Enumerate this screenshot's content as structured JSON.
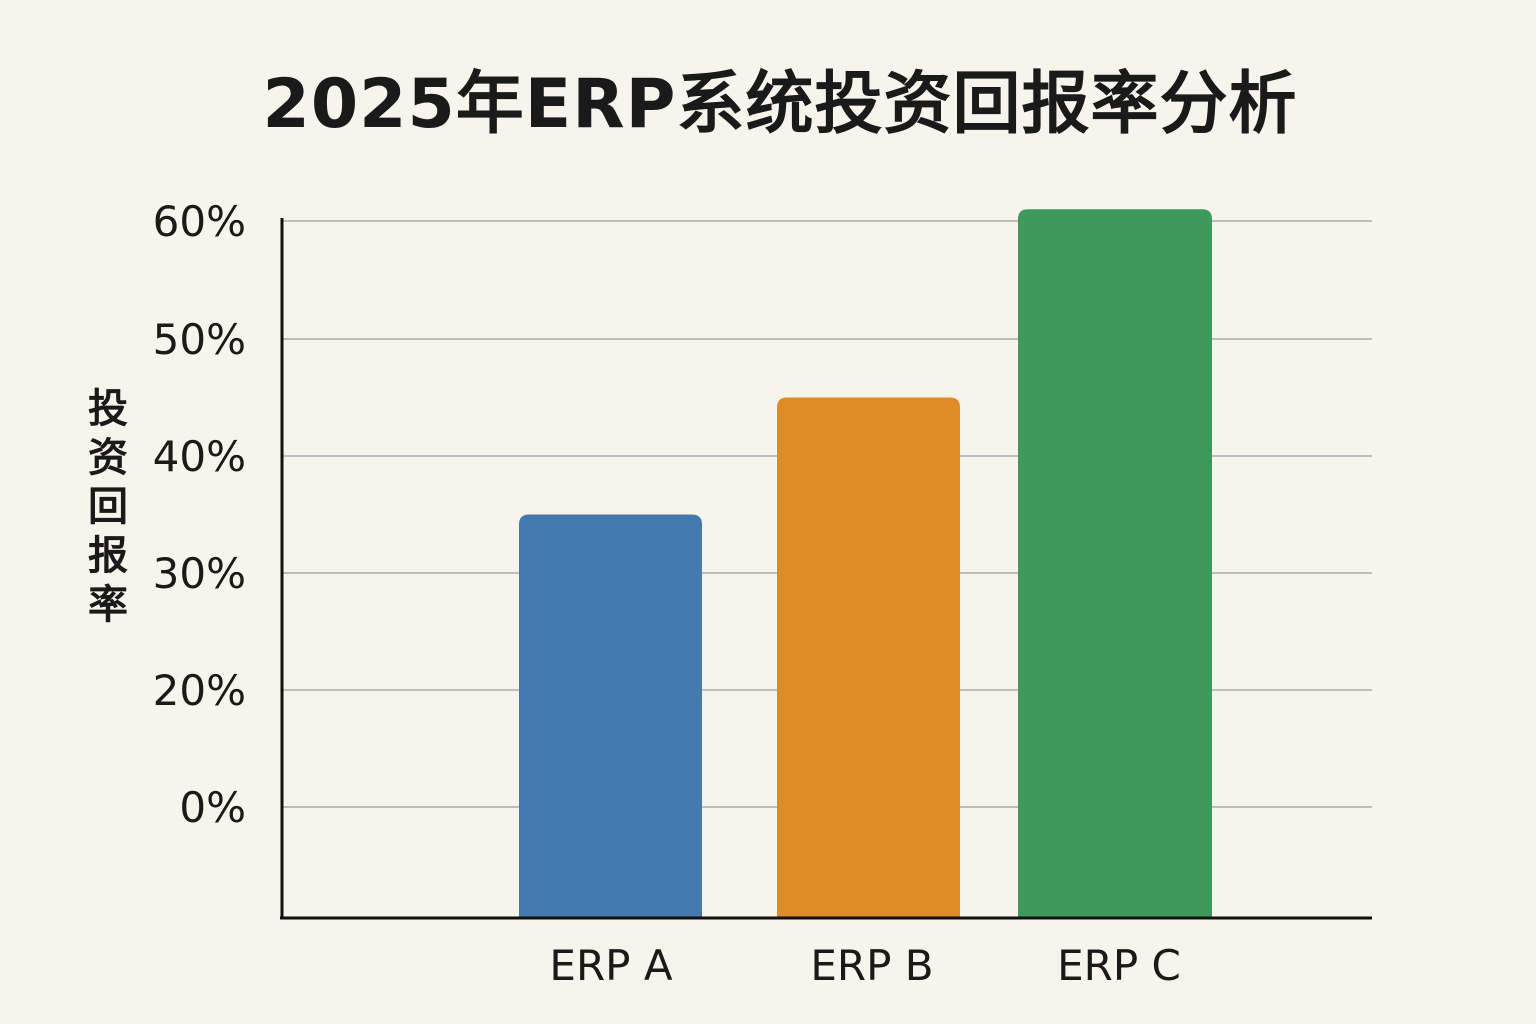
{
  "chart_data": {
    "type": "bar",
    "title": "2025年ERP系统投资回报率分析",
    "xlabel": "",
    "ylabel": "投资回报率",
    "categories": [
      "ERP A",
      "ERP B",
      "ERP C"
    ],
    "values": [
      35,
      45,
      61
    ],
    "colors": [
      "#4479b0",
      "#e08c26",
      "#3e9a5c"
    ],
    "y_ticks": [
      {
        "value": 0,
        "label": "0%"
      },
      {
        "value": 20,
        "label": "20%"
      },
      {
        "value": 30,
        "label": "30%"
      },
      {
        "value": 40,
        "label": "40%"
      },
      {
        "value": 50,
        "label": "50%"
      },
      {
        "value": 60,
        "label": "60%"
      }
    ],
    "grid": true,
    "legend": "none"
  }
}
